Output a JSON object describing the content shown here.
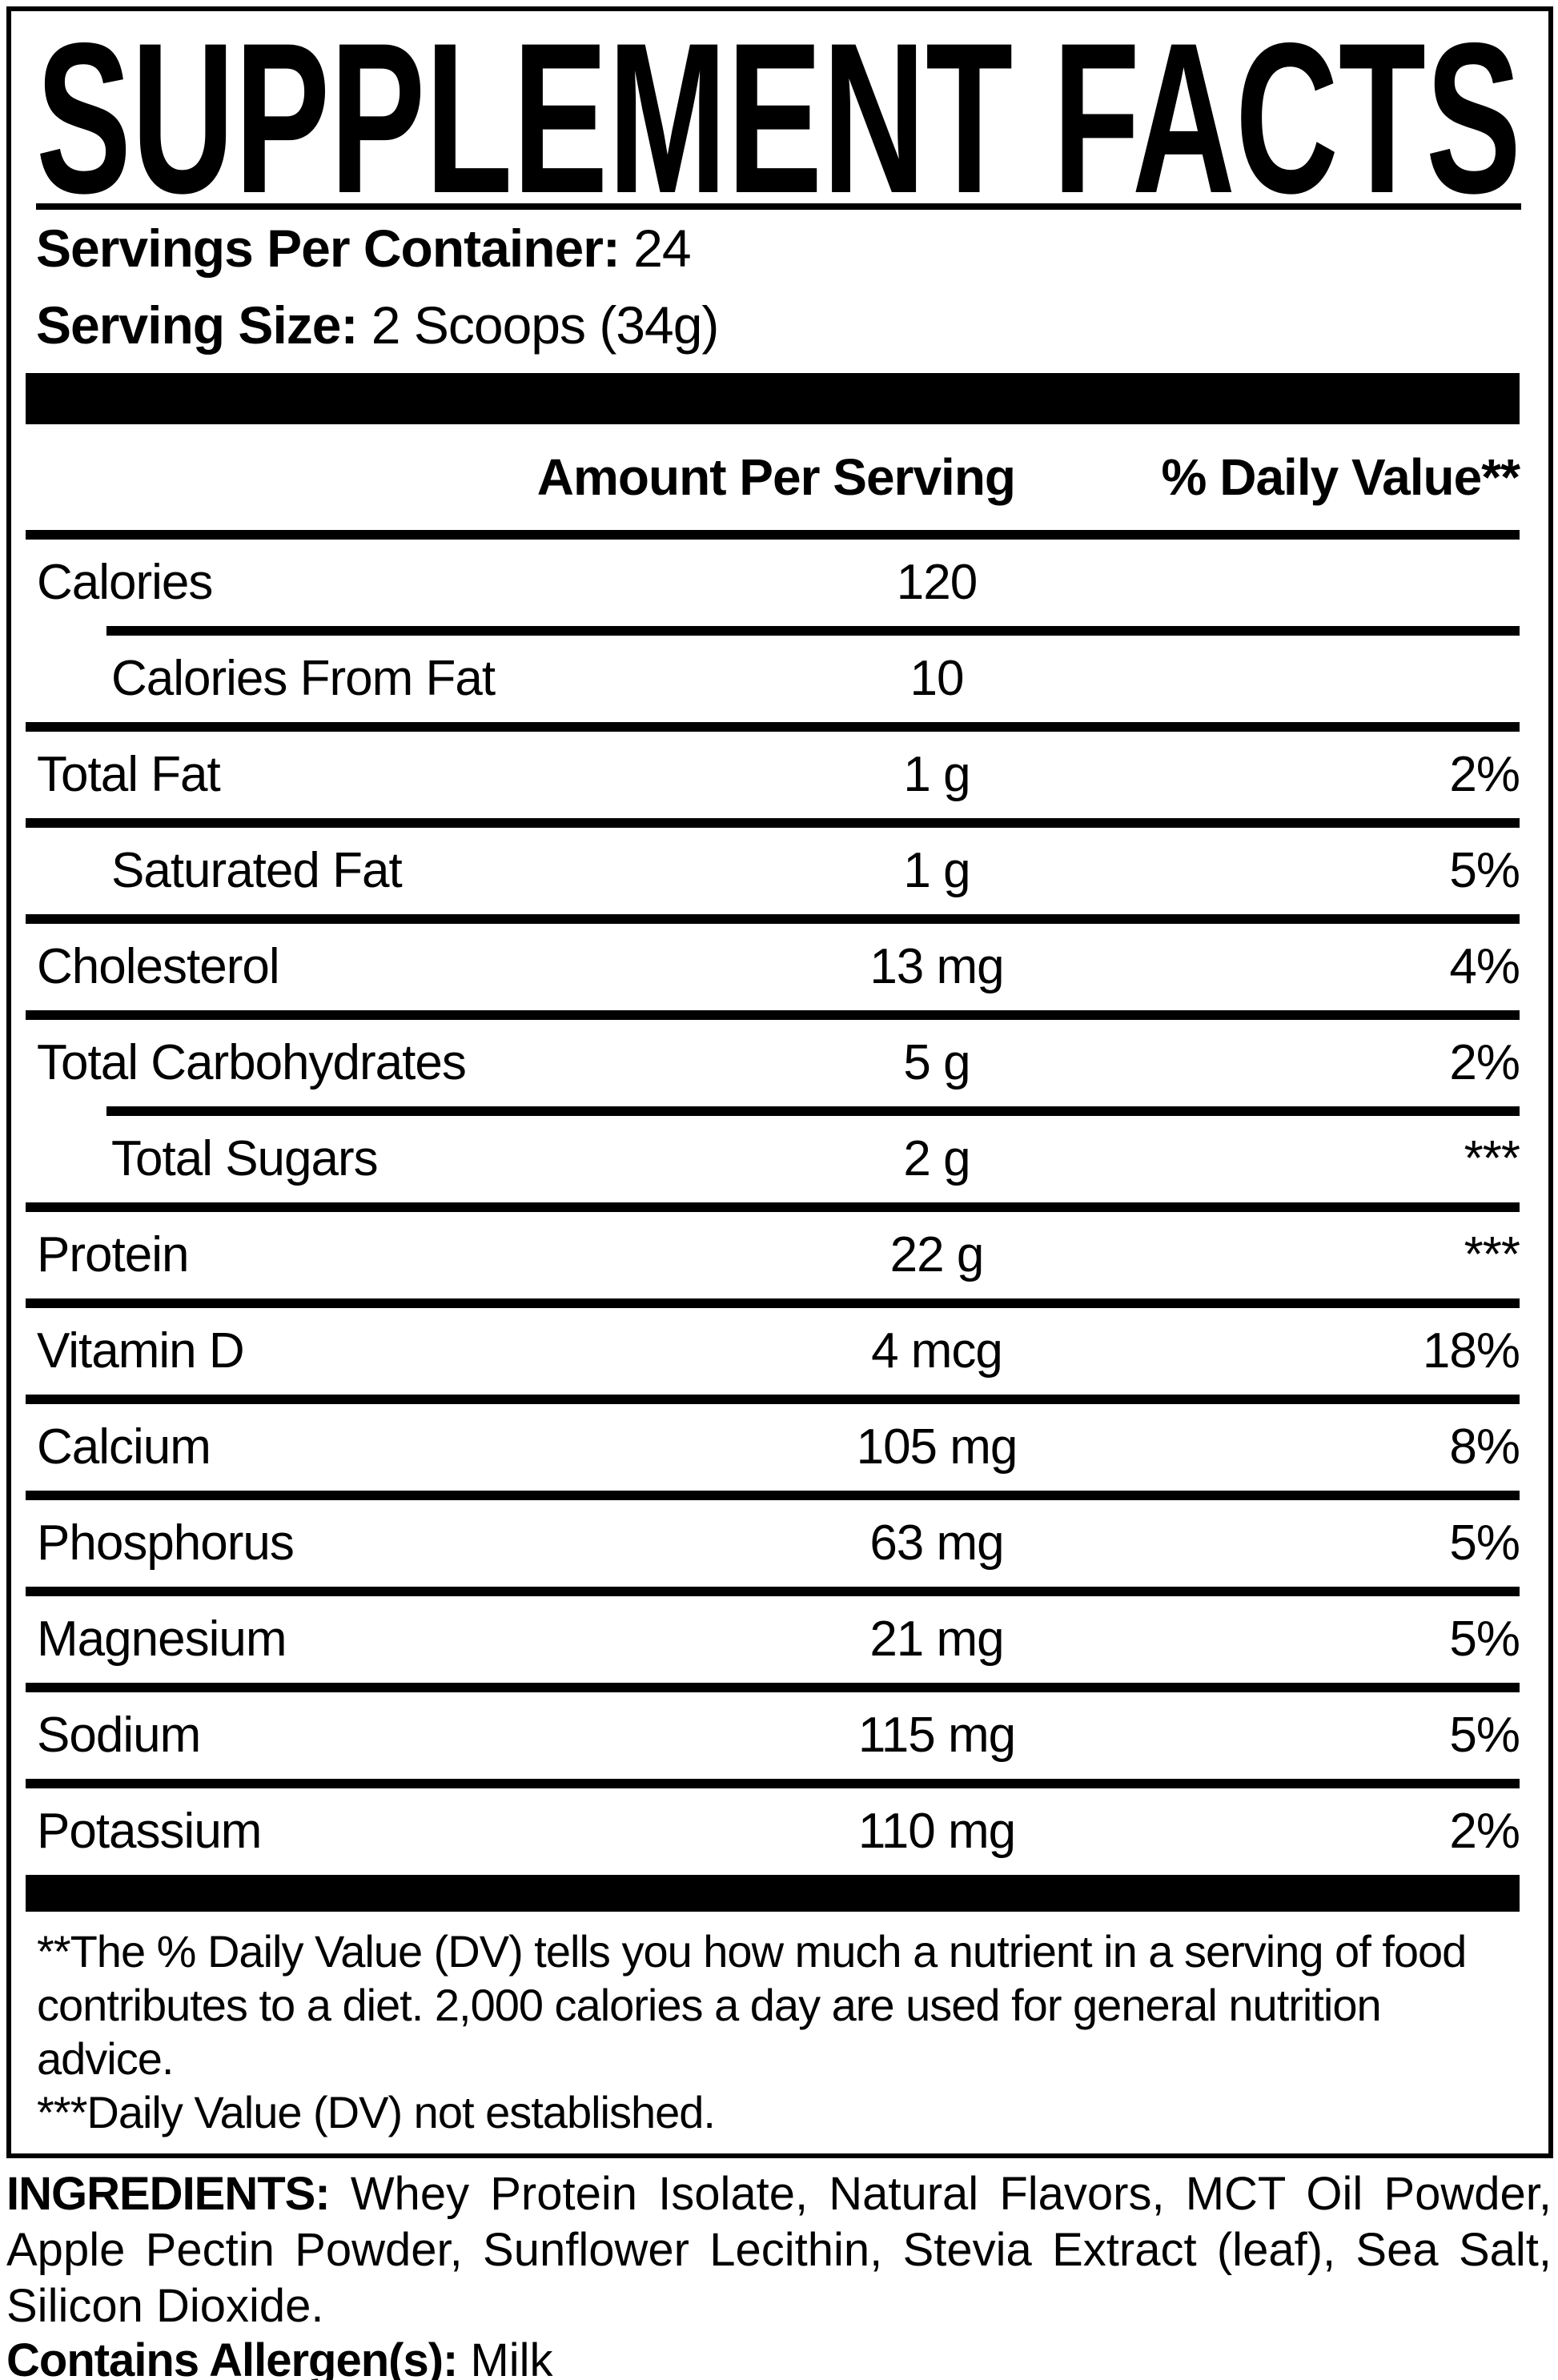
{
  "title": "SUPPLEMENT FACTS",
  "servings": {
    "label": "Servings Per Container:",
    "value": "24"
  },
  "serving_size": {
    "label": "Serving Size:",
    "value": "2 Scoops (34g)"
  },
  "table": {
    "amount_header": "Amount Per Serving",
    "dv_header": "% Daily Value**",
    "rows": [
      {
        "name": "Calories",
        "amount": "120",
        "dv": "",
        "indent": false
      },
      {
        "name": "Calories From Fat",
        "amount": "10",
        "dv": "",
        "indent": true
      },
      {
        "name": "Total Fat",
        "amount": "1 g",
        "dv": "2%",
        "indent": false
      },
      {
        "name": "Saturated Fat",
        "amount": "1 g",
        "dv": "5%",
        "indent": true
      },
      {
        "name": "Cholesterol",
        "amount": "13 mg",
        "dv": "4%",
        "indent": false
      },
      {
        "name": "Total Carbohydrates",
        "amount": "5 g",
        "dv": "2%",
        "indent": false
      },
      {
        "name": "Total Sugars",
        "amount": "2 g",
        "dv": "***",
        "indent": true
      },
      {
        "name": "Protein",
        "amount": "22 g",
        "dv": "***",
        "indent": false
      },
      {
        "name": "Vitamin D",
        "amount": "4 mcg",
        "dv": "18%",
        "indent": false
      },
      {
        "name": "Calcium",
        "amount": "105 mg",
        "dv": "8%",
        "indent": false
      },
      {
        "name": "Phosphorus",
        "amount": "63 mg",
        "dv": "5%",
        "indent": false
      },
      {
        "name": "Magnesium",
        "amount": "21 mg",
        "dv": "5%",
        "indent": false
      },
      {
        "name": "Sodium",
        "amount": "115 mg",
        "dv": "5%",
        "indent": false
      },
      {
        "name": "Potassium",
        "amount": "110 mg",
        "dv": "2%",
        "indent": false
      }
    ]
  },
  "footnotes": {
    "dv_note": "**The % Daily Value (DV) tells you how much a nutrient in a serving of food contributes to a diet. 2,000 calories a day are used for general nutrition advice.",
    "not_established_note": "***Daily Value (DV) not established."
  },
  "ingredients": {
    "label": "INGREDIENTS:",
    "text": " Whey Protein Isolate, Natural Flavors, MCT Oil Powder, Apple Pectin Powder, Sunflower Lecithin, Stevia Extract (leaf), Sea Salt, Silicon Dioxide."
  },
  "allergens": {
    "label": "Contains Allergen(s):",
    "value": " Milk"
  },
  "colors": {
    "ink": "#000000",
    "background": "#ffffff"
  }
}
